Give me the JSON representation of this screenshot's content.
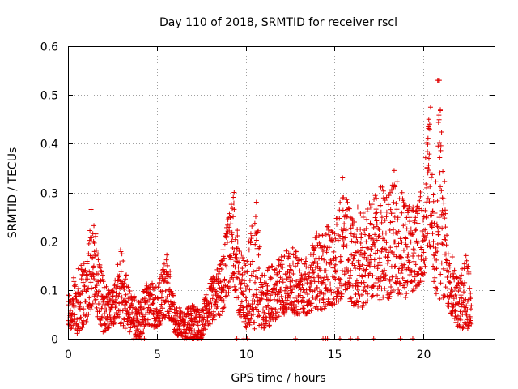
{
  "chart_data": {
    "type": "scatter",
    "title": "Day 110 of 2018, SRMTID for receiver rscl",
    "xlabel": "GPS time / hours",
    "ylabel": "SRMTID / TECUs",
    "xlim": [
      0,
      24
    ],
    "ylim": [
      0,
      0.6
    ],
    "xticks": [
      0,
      5,
      10,
      15,
      20
    ],
    "xtick_labels": [
      "0",
      "5",
      "10",
      "15",
      "20"
    ],
    "yticks": [
      0,
      0.1,
      0.2,
      0.3,
      0.4,
      0.5,
      0.6
    ],
    "ytick_labels": [
      "0",
      "0.1",
      "0.2",
      "0.3",
      "0.4",
      "0.5",
      "0.6"
    ],
    "grid": true,
    "marker": "+",
    "color": "#e00000",
    "series": [
      {
        "name": "SRMTID",
        "envelope": [
          [
            0.0,
            0.02,
            0.1
          ],
          [
            0.5,
            0.01,
            0.14
          ],
          [
            1.0,
            0.03,
            0.18
          ],
          [
            1.3,
            0.06,
            0.26
          ],
          [
            1.6,
            0.05,
            0.22
          ],
          [
            2.0,
            0.01,
            0.12
          ],
          [
            2.5,
            0.03,
            0.11
          ],
          [
            3.0,
            0.03,
            0.19
          ],
          [
            3.5,
            0.01,
            0.1
          ],
          [
            4.0,
            0.0,
            0.08
          ],
          [
            4.5,
            0.03,
            0.12
          ],
          [
            5.0,
            0.02,
            0.11
          ],
          [
            5.6,
            0.05,
            0.18
          ],
          [
            6.0,
            0.01,
            0.07
          ],
          [
            6.5,
            0.0,
            0.06
          ],
          [
            7.0,
            0.0,
            0.07
          ],
          [
            7.5,
            0.0,
            0.06
          ],
          [
            8.0,
            0.03,
            0.12
          ],
          [
            8.5,
            0.04,
            0.15
          ],
          [
            9.0,
            0.08,
            0.25
          ],
          [
            9.3,
            0.12,
            0.3
          ],
          [
            9.6,
            0.05,
            0.2
          ],
          [
            10.0,
            0.02,
            0.16
          ],
          [
            10.5,
            0.02,
            0.28
          ],
          [
            11.0,
            0.02,
            0.14
          ],
          [
            11.5,
            0.03,
            0.15
          ],
          [
            12.0,
            0.05,
            0.17
          ],
          [
            12.5,
            0.05,
            0.2
          ],
          [
            13.0,
            0.05,
            0.17
          ],
          [
            13.5,
            0.05,
            0.18
          ],
          [
            14.0,
            0.06,
            0.22
          ],
          [
            14.5,
            0.06,
            0.23
          ],
          [
            15.0,
            0.07,
            0.25
          ],
          [
            15.5,
            0.08,
            0.32
          ],
          [
            16.0,
            0.07,
            0.25
          ],
          [
            16.5,
            0.06,
            0.27
          ],
          [
            17.0,
            0.08,
            0.3
          ],
          [
            17.5,
            0.08,
            0.32
          ],
          [
            18.0,
            0.08,
            0.3
          ],
          [
            18.5,
            0.09,
            0.34
          ],
          [
            19.0,
            0.08,
            0.28
          ],
          [
            19.5,
            0.1,
            0.27
          ],
          [
            20.0,
            0.12,
            0.32
          ],
          [
            20.3,
            0.2,
            0.47
          ],
          [
            20.6,
            0.1,
            0.28
          ],
          [
            20.9,
            0.08,
            0.52
          ],
          [
            21.3,
            0.07,
            0.25
          ],
          [
            21.7,
            0.04,
            0.17
          ],
          [
            22.0,
            0.02,
            0.12
          ],
          [
            22.5,
            0.02,
            0.19
          ],
          [
            22.7,
            0.03,
            0.08
          ]
        ],
        "outliers": [
          [
            20.8,
            0.53
          ],
          [
            20.9,
            0.53
          ],
          [
            20.85,
            0.53
          ],
          [
            20.3,
            0.45
          ],
          [
            20.35,
            0.44
          ],
          [
            20.4,
            0.475
          ],
          [
            20.35,
            0.43
          ],
          [
            20.95,
            0.47
          ],
          [
            20.2,
            0.35
          ],
          [
            20.25,
            0.34
          ],
          [
            9.35,
            0.3
          ],
          [
            9.3,
            0.29
          ],
          [
            10.6,
            0.28
          ],
          [
            1.3,
            0.265
          ],
          [
            15.45,
            0.33
          ],
          [
            18.35,
            0.345
          ],
          [
            16.3,
            0.27
          ]
        ],
        "zero_points": [
          3.7,
          4.15,
          4.3,
          7.3,
          7.5,
          9.5,
          9.9,
          10.1,
          12.8,
          14.35,
          14.5,
          14.6,
          15.3,
          15.9,
          16.3,
          17.2,
          18.7,
          19.4
        ]
      }
    ]
  }
}
